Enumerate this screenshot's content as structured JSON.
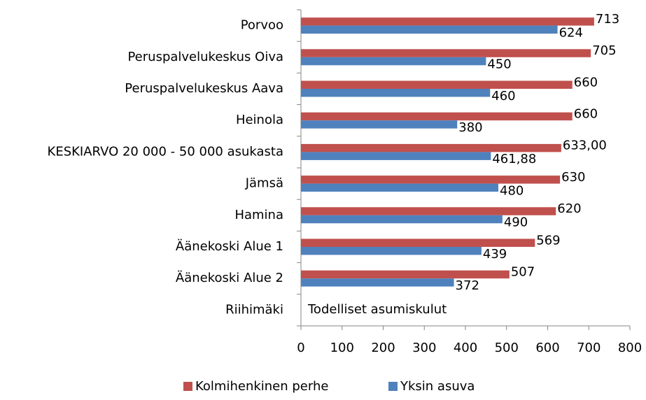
{
  "chart_data": {
    "type": "bar",
    "orientation": "horizontal",
    "categories": [
      "Porvoo",
      "Peruspalvelukeskus Oiva",
      "Peruspalvelukeskus Aava",
      "Heinola",
      "KESKIARVO 20 000 - 50 000 asukasta",
      "Jämsä",
      "Hamina",
      "Äänekoski Alue 1",
      "Äänekoski Alue 2",
      "Riihimäki"
    ],
    "series": [
      {
        "name": "Kolmihenkinen perhe",
        "color": "#c0504d",
        "values": [
          713,
          705,
          660,
          660,
          633,
          630,
          620,
          569,
          507,
          null
        ],
        "value_labels": [
          "713",
          "705",
          "660",
          "660",
          "633,00",
          "630",
          "620",
          "569",
          "507",
          null
        ]
      },
      {
        "name": "Yksin asuva",
        "color": "#4f81bd",
        "values": [
          624,
          450,
          460,
          380,
          461.88,
          480,
          490,
          439,
          372,
          null
        ],
        "value_labels": [
          "624",
          "450",
          "460",
          "380",
          "461,88",
          "480",
          "490",
          "439",
          "372",
          null
        ]
      }
    ],
    "annotation": "Todelliset asumiskulut",
    "xlim": [
      0,
      800
    ],
    "xticks": [
      0,
      100,
      200,
      300,
      400,
      500,
      600,
      700,
      800
    ],
    "grid": false,
    "legend": "bottom"
  }
}
